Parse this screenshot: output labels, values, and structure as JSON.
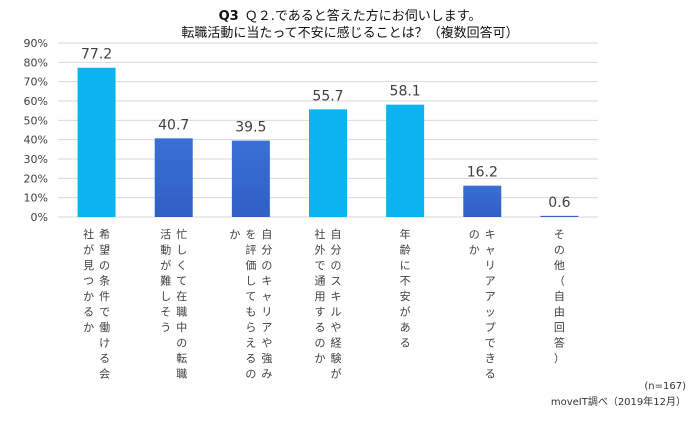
{
  "title": {
    "q_label": "Q3",
    "line1": "Ｑ２.であると答えた方にお伺いします。",
    "line2": "転職活動に当たって不安に感じることは？（複数回答可）"
  },
  "footer": {
    "n_note": "(n=167)",
    "source": "moveIT調べ（2019年12月）"
  },
  "colors": {
    "cyan": "#0AB4EF",
    "blue": "#2F5FC4",
    "grid": "#d9d9d9",
    "text": "#404040"
  },
  "chart_data": {
    "type": "bar",
    "ylim": [
      0,
      90
    ],
    "y_ticks": [
      "0%",
      "10%",
      "20%",
      "30%",
      "40%",
      "50%",
      "60%",
      "70%",
      "80%",
      "90%"
    ],
    "grid": true,
    "categories": [
      "希望の条件で働ける会社が見つかるか",
      "忙しくて在職中の転職活動が難しそう",
      "自分のキャリアや強みを評価してもらえるのか",
      "自分のスキルや経験が社外で通用するのか",
      "年齢に不安がある",
      "キャリアアップできるのか",
      "その他（自由回答）"
    ],
    "values": [
      77.2,
      40.7,
      39.5,
      55.7,
      58.1,
      16.2,
      0.6
    ],
    "value_labels": [
      "77.2",
      "40.7",
      "39.5",
      "55.7",
      "58.1",
      "16.2",
      "0.6"
    ],
    "bar_colors": [
      "cyan",
      "blue",
      "blue",
      "cyan",
      "cyan",
      "blue",
      "blue"
    ]
  }
}
